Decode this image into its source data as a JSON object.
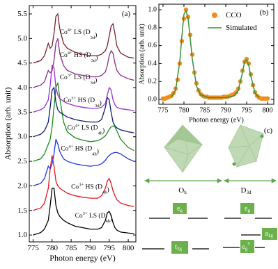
{
  "chart_data": [
    {
      "type": "line",
      "panel_label": "(a)",
      "x_label": "Photon energy (eV)",
      "y_label": "Absorption (arb. unit)",
      "xlim": [
        774,
        802
      ],
      "ylim": [
        0.86,
        5.67
      ],
      "xticks": [
        775,
        780,
        785,
        790,
        795,
        800
      ],
      "yticks": [
        {
          "value": 1,
          "label": "1.0"
        },
        1.5,
        {
          "value": 2,
          "label": "2.0"
        },
        2.5,
        {
          "value": 3,
          "label": "3.0"
        },
        3.5,
        {
          "value": 4,
          "label": "4.0"
        },
        4.5,
        {
          "value": 5,
          "label": "5.0"
        },
        5.5
      ],
      "x": [
        775,
        777,
        778,
        779,
        779.5,
        780,
        780.5,
        781,
        781.5,
        782,
        783,
        784,
        786,
        788,
        790,
        792,
        793,
        794,
        794.5,
        795,
        795.5,
        796,
        796.5,
        797,
        798,
        800,
        801.5
      ],
      "series": [
        {
          "label": [
            "Co",
            "3+",
            " LS (D",
            "4h",
            ")"
          ],
          "color": "#000000",
          "values": [
            1.0,
            1.05,
            1.12,
            1.3,
            1.6,
            1.95,
            1.95,
            1.6,
            1.45,
            1.38,
            1.3,
            1.25,
            1.18,
            1.15,
            1.12,
            1.12,
            1.15,
            1.3,
            1.45,
            1.48,
            1.4,
            1.25,
            1.15,
            1.1,
            1.06,
            1.04,
            1.03
          ]
        },
        {
          "label": [
            "Co",
            "3+",
            " HS (D",
            "4h",
            ")"
          ],
          "color": "#e8161b",
          "values": [
            1.5,
            1.55,
            1.65,
            1.95,
            2.35,
            2.62,
            2.4,
            2.1,
            2.0,
            1.95,
            1.9,
            1.85,
            1.8,
            1.77,
            1.75,
            1.75,
            1.8,
            1.95,
            2.1,
            2.15,
            2.05,
            1.9,
            1.8,
            1.72,
            1.65,
            1.6,
            1.58
          ]
        },
        {
          "label": [
            "Co",
            "4+",
            " HS (D",
            "4h",
            ")"
          ],
          "color": "#1e35e0",
          "values": [
            2.0,
            2.05,
            2.15,
            2.4,
            2.35,
            2.45,
            2.65,
            2.95,
            2.85,
            2.7,
            2.55,
            2.5,
            2.45,
            2.42,
            2.4,
            2.42,
            2.45,
            2.52,
            2.58,
            2.62,
            2.65,
            2.67,
            2.68,
            2.68,
            2.65,
            2.55,
            2.5
          ]
        },
        {
          "label": [
            "Co",
            "4+",
            " LS (D",
            "4h",
            ")"
          ],
          "color": "#1a8c1a",
          "values": [
            2.5,
            2.55,
            2.65,
            2.85,
            2.95,
            3.2,
            3.6,
            4.0,
            4.1,
            3.8,
            3.3,
            3.1,
            2.98,
            2.93,
            2.9,
            2.92,
            2.96,
            3.02,
            3.08,
            3.15,
            3.2,
            3.22,
            3.2,
            3.12,
            2.95,
            2.78,
            2.72
          ]
        },
        {
          "label": [
            "Co",
            "3+",
            " HS (D",
            "3d",
            ")"
          ],
          "color": "#0a1a6e",
          "values": [
            3.0,
            3.05,
            3.12,
            3.3,
            3.6,
            3.95,
            4.0,
            3.7,
            3.55,
            3.5,
            3.45,
            3.4,
            3.35,
            3.32,
            3.3,
            3.3,
            3.35,
            3.6,
            3.8,
            3.75,
            3.5,
            3.3,
            3.22,
            3.18,
            3.14,
            3.1,
            3.08
          ]
        },
        {
          "label": [
            "Co",
            "3+",
            " LS (D",
            "3d",
            ")"
          ],
          "color": "#9b30d0",
          "values": [
            3.5,
            3.55,
            3.6,
            3.75,
            4.05,
            4.45,
            4.4,
            4.0,
            3.85,
            3.78,
            3.72,
            3.68,
            3.63,
            3.6,
            3.58,
            3.58,
            3.6,
            3.68,
            3.85,
            4.0,
            3.95,
            3.75,
            3.65,
            3.6,
            3.57,
            3.55,
            3.53
          ]
        },
        {
          "label": [
            "Co",
            "4+",
            " HS (D",
            "3d",
            ")"
          ],
          "color": "#8b2a8e",
          "values": [
            4.0,
            4.05,
            4.12,
            4.35,
            4.3,
            4.35,
            4.55,
            4.9,
            5.0,
            4.7,
            4.45,
            4.35,
            4.28,
            4.25,
            4.22,
            4.22,
            4.25,
            4.32,
            4.45,
            4.65,
            4.75,
            4.7,
            4.5,
            4.35,
            4.25,
            4.18,
            4.15
          ]
        },
        {
          "label": [
            "Co",
            "4+",
            " LS (D",
            "3d",
            ")"
          ],
          "color": "#7a1f2a",
          "values": [
            4.5,
            4.55,
            4.65,
            4.9,
            4.8,
            4.85,
            5.1,
            5.45,
            5.5,
            5.2,
            4.9,
            4.8,
            4.72,
            4.68,
            4.65,
            4.65,
            4.68,
            4.75,
            4.85,
            5.05,
            5.25,
            5.3,
            5.1,
            4.85,
            4.7,
            4.62,
            4.6
          ]
        }
      ]
    },
    {
      "type": "line",
      "panel_label": "(b)",
      "x_label": "Photon energy (eV)",
      "y_label": "Absorption (arb. unit)",
      "xlim": [
        774,
        801.5
      ],
      "ylim": [
        -0.054,
        1.062
      ],
      "xticks": [
        775,
        780,
        785,
        790,
        795,
        800
      ],
      "yticks": [
        {
          "value": 0,
          "label": "0.0"
        },
        0.2,
        0.4,
        0.6,
        0.8,
        {
          "value": 1,
          "label": "1.0"
        }
      ],
      "legend": "upper right",
      "series": [
        {
          "name": "CCO",
          "color": "#f28c1c",
          "marker": true,
          "x": [
            775,
            775.5,
            776,
            776.5,
            777,
            777.5,
            778,
            778.5,
            779,
            779.5,
            780,
            780.5,
            781,
            781.5,
            782,
            782.5,
            783,
            783.5,
            784,
            784.5,
            785,
            785.5,
            786,
            786.5,
            787,
            787.5,
            788,
            788.5,
            789,
            789.5,
            790,
            790.5,
            791,
            791.5,
            792,
            792.5,
            793,
            793.5,
            794,
            794.5,
            795,
            795.5,
            796,
            796.5,
            797,
            797.5,
            798,
            798.5,
            799,
            799.5,
            800
          ],
          "values": [
            0.01,
            0.01,
            0.02,
            0.03,
            0.04,
            0.07,
            0.12,
            0.22,
            0.4,
            0.65,
            0.9,
            1.0,
            0.92,
            0.72,
            0.5,
            0.3,
            0.18,
            0.1,
            0.06,
            0.04,
            0.03,
            0.03,
            0.02,
            0.02,
            0.02,
            0.02,
            0.02,
            0.02,
            0.02,
            0.03,
            0.03,
            0.03,
            0.04,
            0.05,
            0.06,
            0.08,
            0.12,
            0.2,
            0.32,
            0.42,
            0.45,
            0.4,
            0.28,
            0.16,
            0.08,
            0.04,
            0.02,
            0.01,
            0.01,
            0.01,
            0.01
          ]
        },
        {
          "name": "Simulated",
          "color": "#3a8f3a",
          "marker": false,
          "x": [
            777,
            778,
            779,
            779.5,
            780,
            780.5,
            781,
            781.5,
            782,
            783,
            784,
            786,
            790,
            792,
            793,
            794,
            794.5,
            795,
            795.5,
            796,
            797,
            798
          ],
          "values": [
            0.03,
            0.1,
            0.42,
            0.7,
            0.95,
            0.99,
            0.9,
            0.68,
            0.45,
            0.15,
            0.05,
            0.02,
            0.02,
            0.04,
            0.1,
            0.3,
            0.42,
            0.44,
            0.38,
            0.26,
            0.07,
            0.02
          ]
        }
      ]
    }
  ],
  "diagram": {
    "panel_label": "(c)",
    "symmetries": [
      {
        "base": "O",
        "sub": "h"
      },
      {
        "base": "D",
        "sub": "3d"
      }
    ],
    "levels": [
      {
        "base": "e",
        "sub": "g"
      },
      {
        "base": "t",
        "sub": "2g"
      },
      {
        "base": "e",
        "sub": "g"
      },
      {
        "base": "a",
        "sub": "1g"
      },
      {
        "base": "e",
        "sub": "g",
        "sup": "π"
      }
    ]
  }
}
